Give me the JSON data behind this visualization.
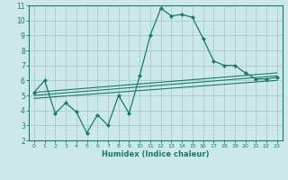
{
  "xlabel": "Humidex (Indice chaleur)",
  "ylabel": "",
  "background_color": "#cce8e8",
  "grid_color": "#aacccc",
  "line_color": "#1a7a6e",
  "xlim": [
    -0.5,
    23.5
  ],
  "ylim": [
    2,
    11
  ],
  "xticks": [
    0,
    1,
    2,
    3,
    4,
    5,
    6,
    7,
    8,
    9,
    10,
    11,
    12,
    13,
    14,
    15,
    16,
    17,
    18,
    19,
    20,
    21,
    22,
    23
  ],
  "yticks": [
    2,
    3,
    4,
    5,
    6,
    7,
    8,
    9,
    10,
    11
  ],
  "series": [
    {
      "x": [
        0,
        1,
        2,
        3,
        4,
        5,
        6,
        7,
        8,
        9,
        10,
        11,
        12,
        13,
        14,
        15,
        16,
        17,
        18,
        19,
        20,
        21,
        22,
        23
      ],
      "y": [
        5.2,
        6.0,
        3.8,
        4.5,
        3.9,
        2.5,
        3.7,
        3.0,
        5.0,
        3.8,
        6.3,
        9.0,
        10.8,
        10.3,
        10.4,
        10.2,
        8.8,
        7.3,
        7.0,
        7.0,
        6.5,
        6.1,
        6.1,
        6.2
      ]
    },
    {
      "x": [
        0,
        23
      ],
      "y": [
        4.8,
        6.0
      ]
    },
    {
      "x": [
        0,
        23
      ],
      "y": [
        5.0,
        6.3
      ]
    },
    {
      "x": [
        0,
        23
      ],
      "y": [
        5.2,
        6.5
      ]
    }
  ]
}
